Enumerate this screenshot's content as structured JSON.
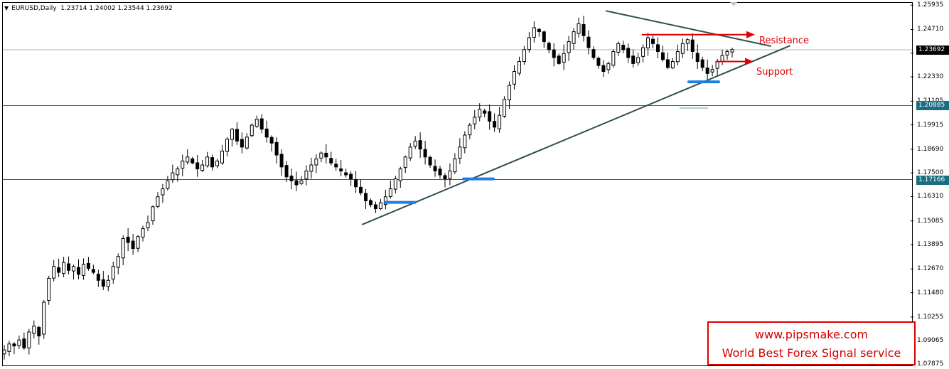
{
  "header": {
    "symbol": "EURUSD,Daily",
    "ohlc": "1.23714 1.24002 1.23544 1.23692"
  },
  "colors": {
    "candle": "#000000",
    "trendline": "#2f4f4f",
    "hline": "#1a6e80",
    "current_line": "#b0b0b0",
    "arrow": "#e00000",
    "marker": "#1e7fe0",
    "hline_tag_bg": "#1a6e80",
    "current_tag_bg": "#000000"
  },
  "chart_data": {
    "type": "candlestick",
    "symbol": "EURUSD",
    "timeframe": "Daily",
    "ylim": [
      1.0782,
      1.2605
    ],
    "y_ticks": [
      "1.25935",
      "1.24710",
      "1.23520",
      "1.22330",
      "1.21105",
      "1.19915",
      "1.18690",
      "1.17500",
      "1.16310",
      "1.15085",
      "1.13895",
      "1.12670",
      "1.11480",
      "1.10255",
      "1.09065",
      "1.07875"
    ],
    "current_price": "1.23692",
    "horizontal_levels": [
      "1.20885",
      "1.17166"
    ],
    "close_path": [
      1.086,
      1.089,
      1.088,
      1.091,
      1.087,
      1.095,
      1.098,
      1.093,
      1.11,
      1.122,
      1.128,
      1.125,
      1.13,
      1.126,
      1.128,
      1.124,
      1.129,
      1.127,
      1.125,
      1.121,
      1.118,
      1.121,
      1.128,
      1.133,
      1.142,
      1.14,
      1.137,
      1.143,
      1.147,
      1.15,
      1.158,
      1.163,
      1.167,
      1.171,
      1.175,
      1.177,
      1.181,
      1.183,
      1.18,
      1.177,
      1.179,
      1.183,
      1.178,
      1.181,
      1.186,
      1.192,
      1.197,
      1.191,
      1.188,
      1.193,
      1.199,
      1.202,
      1.197,
      1.193,
      1.19,
      1.184,
      1.178,
      1.173,
      1.171,
      1.169,
      1.171,
      1.176,
      1.179,
      1.182,
      1.185,
      1.183,
      1.18,
      1.178,
      1.176,
      1.174,
      1.172,
      1.168,
      1.165,
      1.161,
      1.159,
      1.157,
      1.16,
      1.163,
      1.167,
      1.172,
      1.177,
      1.183,
      1.188,
      1.191,
      1.187,
      1.183,
      1.179,
      1.176,
      1.174,
      1.172,
      1.176,
      1.182,
      1.188,
      1.194,
      1.199,
      1.203,
      1.207,
      1.205,
      1.201,
      1.198,
      1.204,
      1.212,
      1.219,
      1.226,
      1.231,
      1.237,
      1.243,
      1.248,
      1.246,
      1.241,
      1.237,
      1.233,
      1.23,
      1.235,
      1.241,
      1.246,
      1.25,
      1.244,
      1.238,
      1.233,
      1.229,
      1.226,
      1.23,
      1.236,
      1.24,
      1.237,
      1.233,
      1.23,
      1.233,
      1.238,
      1.243,
      1.24,
      1.236,
      1.232,
      1.228,
      1.231,
      1.236,
      1.24,
      1.242,
      1.236,
      1.231,
      1.228,
      1.225,
      1.227,
      1.231,
      1.234,
      1.236,
      1.237
    ],
    "trendlines": [
      {
        "name": "",
        "from": {
          "bar": 0.395,
          "price": 1.149
        },
        "to": {
          "bar": 0.866,
          "price": 1.239
        }
      },
      {
        "name": "",
        "from": {
          "bar": 0.663,
          "price": 1.2565
        },
        "to": {
          "bar": 0.845,
          "price": 1.2387
        }
      }
    ],
    "annotations": [
      {
        "label": "Resistance",
        "price": 1.2445
      },
      {
        "label": "Support",
        "price": 1.231
      }
    ],
    "support_markers": [
      1.1602,
      1.172,
      1.2208
    ]
  },
  "annotations": {
    "resistance": "Resistance",
    "support": "Support"
  },
  "watermark": {
    "line1": "www.pipsmake.com",
    "line2": "World Best Forex Signal service"
  }
}
